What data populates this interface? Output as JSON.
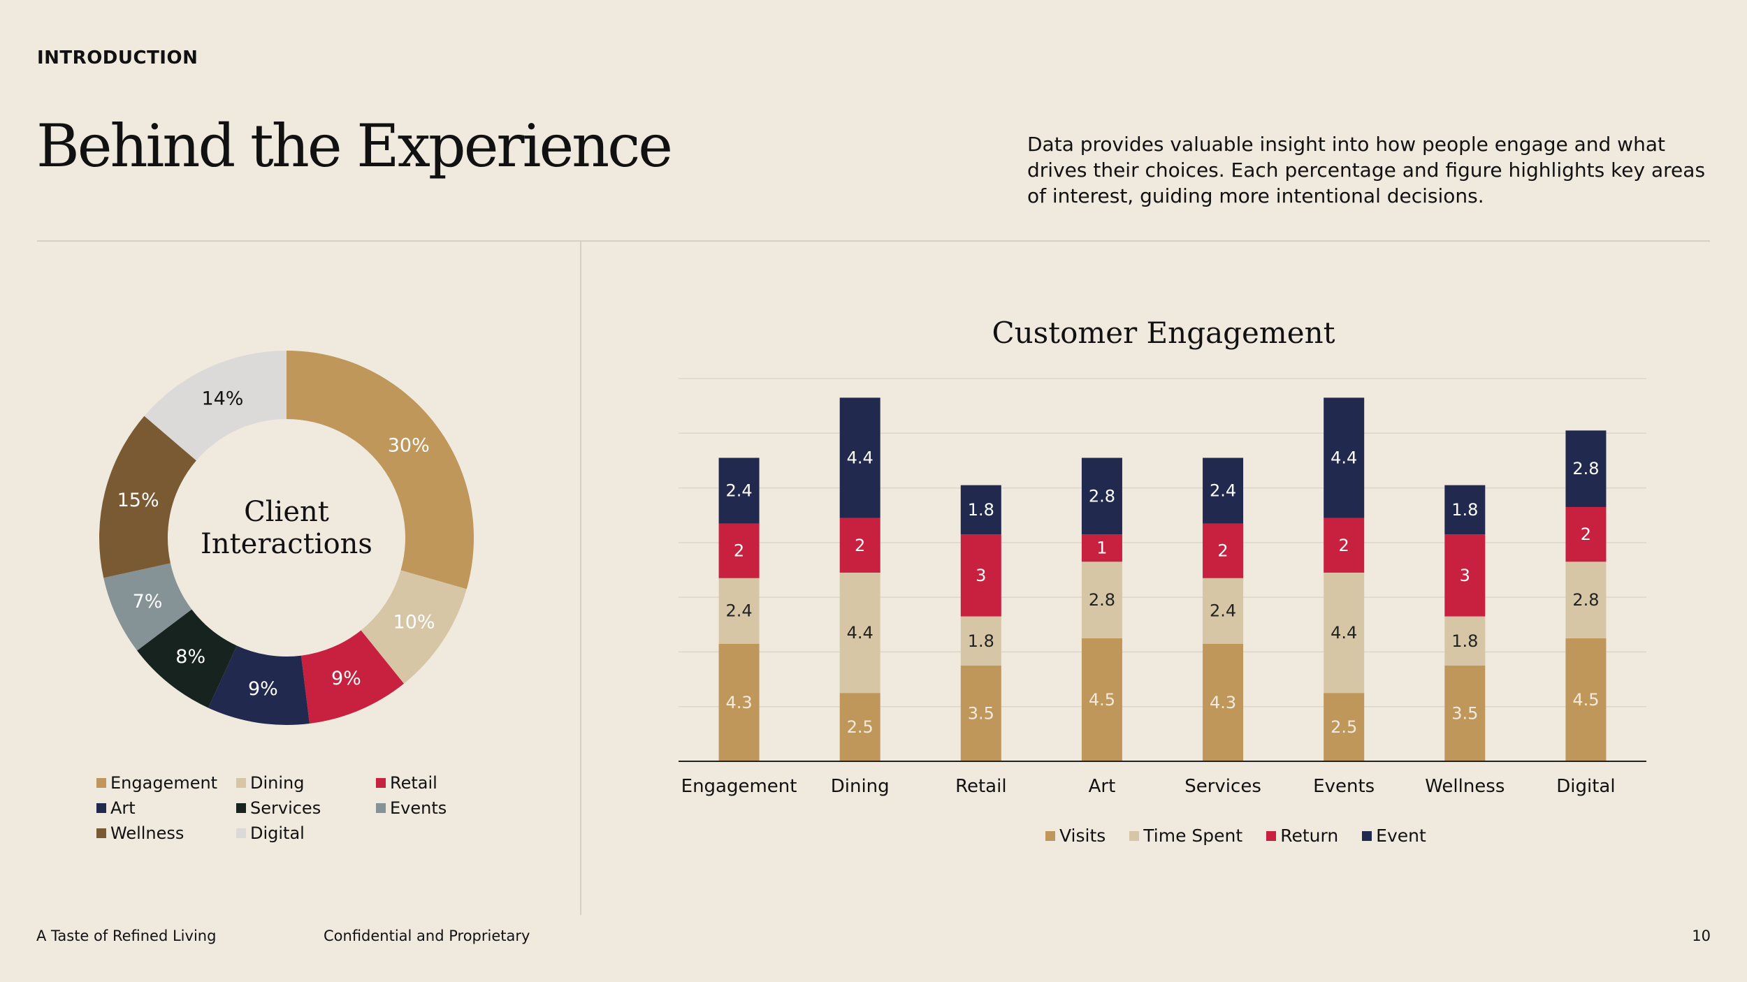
{
  "header": {
    "section_label": "INTRODUCTION",
    "title": "Behind the Experience",
    "description": "Data provides valuable insight into how people engage and what drives their choices. Each percentage and figure highlights key areas of interest, guiding more intentional decisions."
  },
  "footer": {
    "left": "A Taste of Refined Living",
    "center": "Confidential and Proprietary",
    "page_number": "10"
  },
  "chart_data": [
    {
      "type": "pie",
      "variant": "donut",
      "center_label_line1": "Client",
      "center_label_line2": "Interactions",
      "categories": [
        "Engagement",
        "Dining",
        "Retail",
        "Art",
        "Services",
        "Events",
        "Wellness",
        "Digital"
      ],
      "values": [
        30,
        10,
        9,
        9,
        8,
        7,
        15,
        14
      ],
      "data_labels": [
        "30%",
        "10%",
        "9%",
        "9%",
        "8%",
        "7%",
        "15%",
        "14%"
      ],
      "colors": [
        "#BF975B",
        "#D7C6A5",
        "#C8203F",
        "#212A4E",
        "#16231F",
        "#869396",
        "#7A5A32",
        "#DCDAD8"
      ],
      "label_colors": [
        "#FFFFFF",
        "#FFFFFF",
        "#FFFFFF",
        "#FFFFFF",
        "#FFFFFF",
        "#FFFFFF",
        "#FFFFFF",
        "#111111"
      ],
      "legend_position": "bottom"
    },
    {
      "type": "bar",
      "stacked": true,
      "title": "Customer Engagement",
      "categories": [
        "Engagement",
        "Dining",
        "Retail",
        "Art",
        "Services",
        "Events",
        "Wellness",
        "Digital"
      ],
      "series": [
        {
          "name": "Visits",
          "values": [
            4.3,
            2.5,
            3.5,
            4.5,
            4.3,
            2.5,
            3.5,
            4.5
          ],
          "color": "#BF975B",
          "label_color": "#F2EBDD"
        },
        {
          "name": "Time Spent",
          "values": [
            2.4,
            4.4,
            1.8,
            2.8,
            2.4,
            4.4,
            1.8,
            2.8
          ],
          "color": "#D7C6A5",
          "label_color": "#222222"
        },
        {
          "name": "Return",
          "values": [
            2,
            2,
            3,
            1,
            2,
            2,
            3,
            2
          ],
          "color": "#C8203F",
          "label_color": "#FFFFFF"
        },
        {
          "name": "Event",
          "values": [
            2.4,
            4.4,
            1.8,
            2.8,
            2.4,
            4.4,
            1.8,
            2.8
          ],
          "color": "#212A4E",
          "label_color": "#FFFFFF"
        }
      ],
      "ylim": [
        0,
        14
      ],
      "grid": true,
      "legend_position": "bottom"
    }
  ]
}
